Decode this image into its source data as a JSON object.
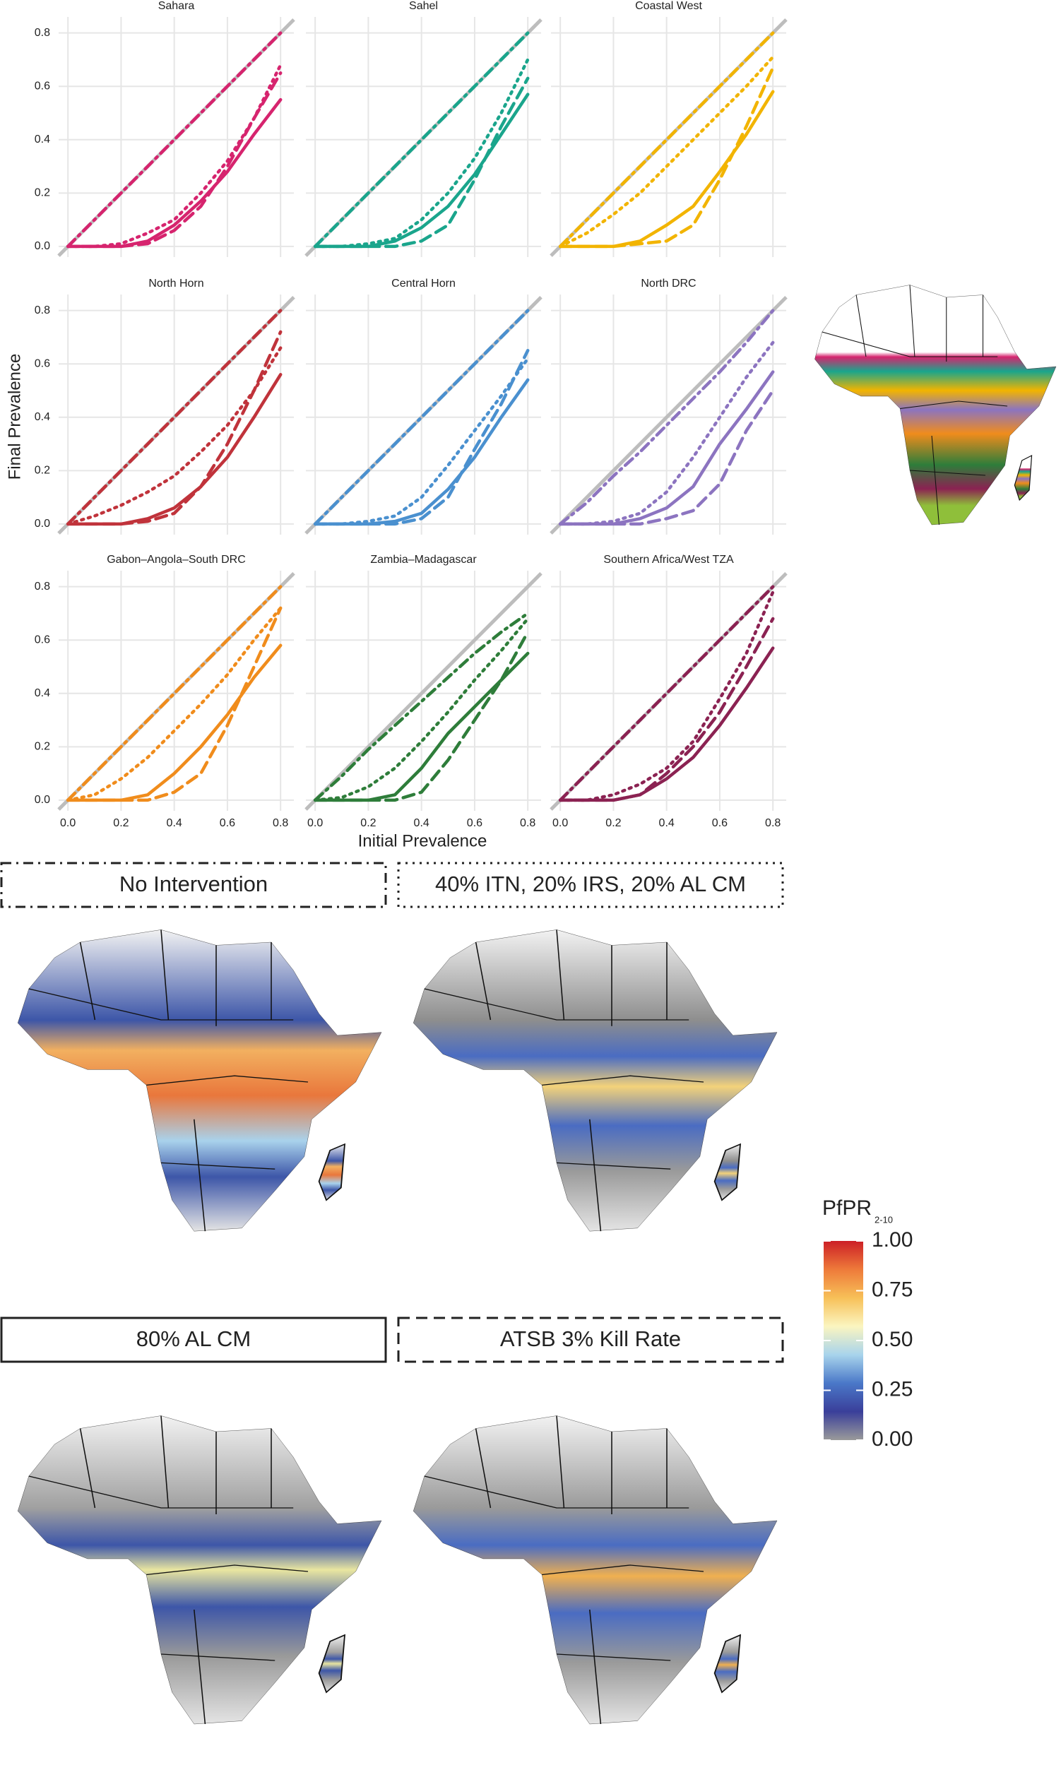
{
  "axis_labels": {
    "x": "Initial Prevalence",
    "y": "Final Prevalence"
  },
  "legend": [
    {
      "label": "No Intervention",
      "style": "dotdash"
    },
    {
      "label": "40% ITN, 20% IRS, 20% AL CM",
      "style": "dotted"
    },
    {
      "label": "80% AL CM",
      "style": "solid"
    },
    {
      "label": "ATSB 3% Kill Rate",
      "style": "dashed"
    }
  ],
  "colorbar": {
    "title": "PfPR",
    "subscript": "2-10",
    "lim": [
      0,
      1
    ],
    "colors": [
      "#9a9a9a",
      "#3a3f9a",
      "#4a78c8",
      "#a8d4ec",
      "#fbf5c0",
      "#f7c058",
      "#ee7a3a",
      "#cc1f26"
    ],
    "ticks": [
      {
        "value": 1,
        "label": "1.00"
      },
      {
        "value": 0.75,
        "label": "0.75"
      },
      {
        "value": 0.5,
        "label": "0.50"
      },
      {
        "value": 0.25,
        "label": "0.25"
      },
      {
        "value": 0,
        "label": "0.00"
      }
    ]
  },
  "chart_data": [
    {
      "type": "line",
      "title": "Sahara",
      "color": "#d6246e",
      "grid": true,
      "x": [
        0,
        0.1,
        0.2,
        0.3,
        0.4,
        0.5,
        0.6,
        0.7,
        0.8
      ],
      "xlim": [
        -0.035,
        0.85
      ],
      "ylim": [
        -0.04,
        0.86
      ],
      "xticks": [
        {
          "value": 0,
          "label": "0.0"
        },
        0.2,
        0.4,
        0.6,
        0.8
      ],
      "yticks": [
        {
          "value": 0,
          "label": "0.0"
        },
        0.2,
        0.4,
        0.6,
        0.8
      ],
      "series": [
        {
          "style": "dotdash",
          "values": [
            0,
            0.1,
            0.2,
            0.3,
            0.4,
            0.5,
            0.6,
            0.7,
            0.8
          ]
        },
        {
          "style": "dotted",
          "values": [
            0,
            0,
            0.01,
            0.05,
            0.1,
            0.2,
            0.32,
            0.48,
            0.68
          ]
        },
        {
          "style": "solid",
          "values": [
            0,
            0,
            0,
            0.02,
            0.08,
            0.17,
            0.28,
            0.42,
            0.55
          ]
        },
        {
          "style": "dashed",
          "values": [
            0,
            0,
            0,
            0.01,
            0.06,
            0.15,
            0.3,
            0.48,
            0.65
          ]
        }
      ]
    },
    {
      "type": "line",
      "title": "Sahel",
      "color": "#1aa58c",
      "grid": true,
      "x": [
        0,
        0.1,
        0.2,
        0.3,
        0.4,
        0.5,
        0.6,
        0.7,
        0.8
      ],
      "xlim": [
        -0.035,
        0.85
      ],
      "ylim": [
        -0.04,
        0.86
      ],
      "xticks": [
        {
          "value": 0,
          "label": "0.0"
        },
        0.2,
        0.4,
        0.6,
        0.8
      ],
      "yticks": [
        {
          "value": 0,
          "label": "0.0"
        },
        0.2,
        0.4,
        0.6,
        0.8
      ],
      "series": [
        {
          "style": "dotdash",
          "values": [
            0,
            0.1,
            0.2,
            0.3,
            0.4,
            0.5,
            0.6,
            0.7,
            0.8
          ]
        },
        {
          "style": "dotted",
          "values": [
            0,
            0,
            0.01,
            0.03,
            0.1,
            0.2,
            0.33,
            0.5,
            0.7
          ]
        },
        {
          "style": "solid",
          "values": [
            0,
            0,
            0,
            0.02,
            0.07,
            0.15,
            0.27,
            0.42,
            0.57
          ]
        },
        {
          "style": "dashed",
          "values": [
            0,
            0,
            0,
            0,
            0.02,
            0.08,
            0.25,
            0.45,
            0.63
          ]
        }
      ]
    },
    {
      "type": "line",
      "title": "Coastal West",
      "color": "#f2b400",
      "grid": true,
      "x": [
        0,
        0.1,
        0.2,
        0.3,
        0.4,
        0.5,
        0.6,
        0.7,
        0.8
      ],
      "xlim": [
        -0.035,
        0.85
      ],
      "ylim": [
        -0.04,
        0.86
      ],
      "xticks": [
        {
          "value": 0,
          "label": "0.0"
        },
        0.2,
        0.4,
        0.6,
        0.8
      ],
      "yticks": [
        {
          "value": 0,
          "label": "0.0"
        },
        0.2,
        0.4,
        0.6,
        0.8
      ],
      "series": [
        {
          "style": "dotdash",
          "values": [
            0,
            0.1,
            0.2,
            0.3,
            0.4,
            0.5,
            0.6,
            0.7,
            0.8
          ]
        },
        {
          "style": "dotted",
          "values": [
            0,
            0.05,
            0.12,
            0.2,
            0.3,
            0.4,
            0.5,
            0.6,
            0.71
          ]
        },
        {
          "style": "solid",
          "values": [
            0,
            0,
            0,
            0.02,
            0.08,
            0.15,
            0.28,
            0.42,
            0.58
          ]
        },
        {
          "style": "dashed",
          "values": [
            0,
            0,
            0,
            0.01,
            0.02,
            0.08,
            0.25,
            0.45,
            0.67
          ]
        }
      ]
    },
    {
      "type": "line",
      "title": "North Horn",
      "color": "#c0333b",
      "grid": true,
      "x": [
        0,
        0.1,
        0.2,
        0.3,
        0.4,
        0.5,
        0.6,
        0.7,
        0.8
      ],
      "xlim": [
        -0.035,
        0.85
      ],
      "ylim": [
        -0.04,
        0.86
      ],
      "xticks": [
        {
          "value": 0,
          "label": "0.0"
        },
        0.2,
        0.4,
        0.6,
        0.8
      ],
      "yticks": [
        {
          "value": 0,
          "label": "0.0"
        },
        0.2,
        0.4,
        0.6,
        0.8
      ],
      "series": [
        {
          "style": "dotdash",
          "values": [
            0,
            0.1,
            0.2,
            0.3,
            0.4,
            0.5,
            0.6,
            0.7,
            0.8
          ]
        },
        {
          "style": "dotted",
          "values": [
            0,
            0.03,
            0.07,
            0.12,
            0.18,
            0.27,
            0.37,
            0.5,
            0.66
          ]
        },
        {
          "style": "solid",
          "values": [
            0,
            0,
            0,
            0.02,
            0.06,
            0.14,
            0.25,
            0.4,
            0.56
          ]
        },
        {
          "style": "dashed",
          "values": [
            0,
            0,
            0,
            0.01,
            0.04,
            0.14,
            0.3,
            0.5,
            0.72
          ]
        }
      ]
    },
    {
      "type": "line",
      "title": "Central Horn",
      "color": "#4a90cf",
      "grid": true,
      "x": [
        0,
        0.1,
        0.2,
        0.3,
        0.4,
        0.5,
        0.6,
        0.7,
        0.8
      ],
      "xlim": [
        -0.035,
        0.85
      ],
      "ylim": [
        -0.04,
        0.86
      ],
      "xticks": [
        {
          "value": 0,
          "label": "0.0"
        },
        0.2,
        0.4,
        0.6,
        0.8
      ],
      "yticks": [
        {
          "value": 0,
          "label": "0.0"
        },
        0.2,
        0.4,
        0.6,
        0.8
      ],
      "series": [
        {
          "style": "dotdash",
          "values": [
            0,
            0.1,
            0.2,
            0.3,
            0.4,
            0.5,
            0.6,
            0.7,
            0.8
          ]
        },
        {
          "style": "dotted",
          "values": [
            0,
            0,
            0.01,
            0.03,
            0.1,
            0.22,
            0.35,
            0.48,
            0.62
          ]
        },
        {
          "style": "solid",
          "values": [
            0,
            0,
            0,
            0.01,
            0.04,
            0.13,
            0.25,
            0.4,
            0.54
          ]
        },
        {
          "style": "dashed",
          "values": [
            0,
            0,
            0,
            0,
            0.02,
            0.1,
            0.28,
            0.45,
            0.65
          ]
        }
      ]
    },
    {
      "type": "line",
      "title": "North DRC",
      "color": "#8c74c0",
      "grid": true,
      "x": [
        0,
        0.1,
        0.2,
        0.3,
        0.4,
        0.5,
        0.6,
        0.7,
        0.8
      ],
      "xlim": [
        -0.035,
        0.85
      ],
      "ylim": [
        -0.04,
        0.86
      ],
      "xticks": [
        {
          "value": 0,
          "label": "0.0"
        },
        0.2,
        0.4,
        0.6,
        0.8
      ],
      "yticks": [
        {
          "value": 0,
          "label": "0.0"
        },
        0.2,
        0.4,
        0.6,
        0.8
      ],
      "series": [
        {
          "style": "dotdash",
          "values": [
            0,
            0.08,
            0.18,
            0.27,
            0.37,
            0.47,
            0.57,
            0.68,
            0.8
          ]
        },
        {
          "style": "dotted",
          "values": [
            0,
            0,
            0.01,
            0.04,
            0.12,
            0.25,
            0.4,
            0.55,
            0.68
          ]
        },
        {
          "style": "solid",
          "values": [
            0,
            0,
            0,
            0.02,
            0.06,
            0.14,
            0.3,
            0.43,
            0.57
          ]
        },
        {
          "style": "dashed",
          "values": [
            0,
            0,
            0,
            0,
            0.02,
            0.05,
            0.15,
            0.35,
            0.5
          ]
        }
      ]
    },
    {
      "type": "line",
      "title": "Gabon–Angola–South DRC",
      "color": "#f08c1c",
      "grid": true,
      "x": [
        0,
        0.1,
        0.2,
        0.3,
        0.4,
        0.5,
        0.6,
        0.7,
        0.8
      ],
      "xlim": [
        -0.035,
        0.85
      ],
      "ylim": [
        -0.04,
        0.86
      ],
      "xticks": [
        {
          "value": 0,
          "label": "0.0"
        },
        0.2,
        0.4,
        0.6,
        0.8
      ],
      "yticks": [
        {
          "value": 0,
          "label": "0.0"
        },
        0.2,
        0.4,
        0.6,
        0.8
      ],
      "series": [
        {
          "style": "dotdash",
          "values": [
            0,
            0.1,
            0.2,
            0.3,
            0.4,
            0.5,
            0.6,
            0.7,
            0.8
          ]
        },
        {
          "style": "dotted",
          "values": [
            0,
            0.02,
            0.08,
            0.16,
            0.26,
            0.36,
            0.47,
            0.6,
            0.72
          ]
        },
        {
          "style": "solid",
          "values": [
            0,
            0,
            0,
            0.02,
            0.1,
            0.2,
            0.32,
            0.46,
            0.58
          ]
        },
        {
          "style": "dashed",
          "values": [
            0,
            0,
            0,
            0,
            0.03,
            0.1,
            0.28,
            0.5,
            0.72
          ]
        }
      ]
    },
    {
      "type": "line",
      "title": "Zambia–Madagascar",
      "color": "#2e7d3a",
      "grid": true,
      "x": [
        0,
        0.1,
        0.2,
        0.3,
        0.4,
        0.5,
        0.6,
        0.7,
        0.8
      ],
      "xlim": [
        -0.035,
        0.85
      ],
      "ylim": [
        -0.04,
        0.86
      ],
      "xticks": [
        {
          "value": 0,
          "label": "0.0"
        },
        0.2,
        0.4,
        0.6,
        0.8
      ],
      "yticks": [
        {
          "value": 0,
          "label": "0.0"
        },
        0.2,
        0.4,
        0.6,
        0.8
      ],
      "series": [
        {
          "style": "dotdash",
          "values": [
            0,
            0.09,
            0.19,
            0.28,
            0.37,
            0.46,
            0.55,
            0.63,
            0.7
          ]
        },
        {
          "style": "dotted",
          "values": [
            0,
            0.01,
            0.05,
            0.12,
            0.22,
            0.33,
            0.45,
            0.56,
            0.68
          ]
        },
        {
          "style": "solid",
          "values": [
            0,
            0,
            0,
            0.02,
            0.12,
            0.25,
            0.35,
            0.45,
            0.55
          ]
        },
        {
          "style": "dashed",
          "values": [
            0,
            0,
            0,
            0,
            0.03,
            0.15,
            0.3,
            0.45,
            0.63
          ]
        }
      ]
    },
    {
      "type": "line",
      "title": "Southern Africa/West TZA",
      "color": "#8b2252",
      "grid": true,
      "x": [
        0,
        0.1,
        0.2,
        0.3,
        0.4,
        0.5,
        0.6,
        0.7,
        0.8
      ],
      "xlim": [
        -0.035,
        0.85
      ],
      "ylim": [
        -0.04,
        0.86
      ],
      "xticks": [
        {
          "value": 0,
          "label": "0.0"
        },
        0.2,
        0.4,
        0.6,
        0.8
      ],
      "yticks": [
        {
          "value": 0,
          "label": "0.0"
        },
        0.2,
        0.4,
        0.6,
        0.8
      ],
      "series": [
        {
          "style": "dotdash",
          "values": [
            0,
            0.1,
            0.2,
            0.3,
            0.4,
            0.5,
            0.6,
            0.7,
            0.8
          ]
        },
        {
          "style": "dotted",
          "values": [
            0,
            0,
            0.02,
            0.06,
            0.12,
            0.22,
            0.38,
            0.55,
            0.78
          ]
        },
        {
          "style": "solid",
          "values": [
            0,
            0,
            0,
            0.02,
            0.08,
            0.16,
            0.28,
            0.42,
            0.57
          ]
        },
        {
          "style": "dashed",
          "values": [
            0,
            0,
            0,
            0.02,
            0.1,
            0.2,
            0.33,
            0.5,
            0.68
          ]
        }
      ]
    }
  ]
}
